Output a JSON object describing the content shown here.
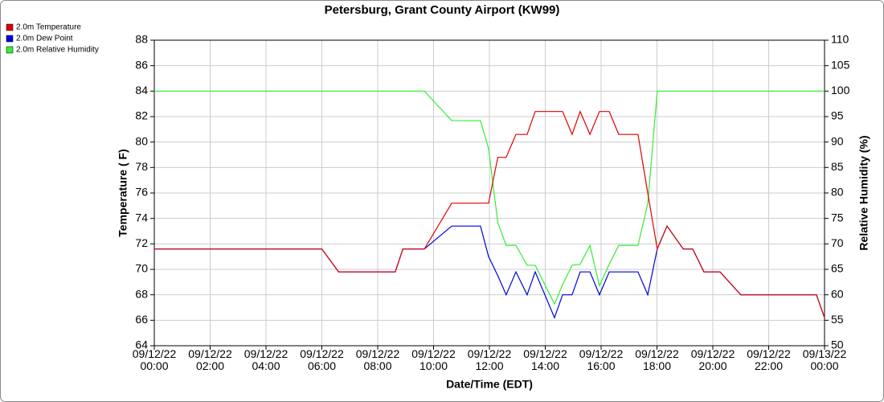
{
  "chart_data": {
    "type": "line",
    "title": "Petersburg, Grant County Airport (KW99)",
    "x_label": "Date/Time (EDT)",
    "y_label": "Temperature ( F)",
    "y2_label": "Relative Humidity (%)",
    "x": [
      0,
      6.0,
      6.6,
      8.63,
      8.9,
      9.67,
      10.65,
      11.68,
      11.97,
      12.3,
      12.6,
      12.95,
      13.35,
      13.64,
      14.33,
      14.62,
      14.96,
      15.25,
      15.6,
      15.94,
      16.29,
      16.63,
      17.32,
      17.67,
      18.01,
      18.36,
      18.94,
      19.28,
      19.68,
      20.26,
      21.0,
      23.71,
      24
    ],
    "series": [
      {
        "name": "2.0m Temperature",
        "color": "#e00000",
        "values": [
          71.6,
          71.6,
          69.8,
          69.8,
          71.6,
          71.6,
          75.2,
          75.2,
          75.2,
          78.8,
          78.8,
          80.6,
          80.6,
          82.4,
          82.4,
          82.4,
          80.6,
          82.4,
          80.6,
          82.4,
          82.4,
          80.6,
          80.6,
          76.0,
          71.6,
          73.4,
          71.6,
          71.6,
          69.8,
          69.8,
          68.0,
          68.0,
          66.2
        ]
      },
      {
        "name": "2.0m Dew Point",
        "color": "#0000e0",
        "values": [
          71.6,
          71.6,
          69.8,
          69.8,
          71.6,
          71.6,
          73.4,
          73.4,
          71.0,
          69.5,
          68.0,
          69.8,
          68.0,
          69.8,
          66.2,
          68.0,
          68.0,
          69.8,
          69.8,
          68.0,
          69.8,
          69.8,
          69.8,
          68.0,
          71.6,
          73.4,
          71.6,
          71.6,
          69.8,
          69.8,
          68.0,
          68.0,
          66.2
        ]
      },
      {
        "name": "2.0m Relative Humidity",
        "color": "#33ee33",
        "axis": "y2",
        "values": [
          100,
          100,
          100,
          100,
          100,
          100,
          94.2,
          94.2,
          88.7,
          74.2,
          69.7,
          69.7,
          65.8,
          65.8,
          58.2,
          62.0,
          65.8,
          66.0,
          69.7,
          61.8,
          66.0,
          69.7,
          69.7,
          77.9,
          100,
          100,
          100,
          100,
          100,
          100,
          100,
          100,
          100
        ]
      }
    ],
    "xlim": [
      0,
      24
    ],
    "xticks": [
      {
        "value": 0,
        "label": "09/12/22\n00:00"
      },
      {
        "value": 2,
        "label": "09/12/22\n02:00"
      },
      {
        "value": 4,
        "label": "09/12/22\n04:00"
      },
      {
        "value": 6,
        "label": "09/12/22\n06:00"
      },
      {
        "value": 8,
        "label": "09/12/22\n08:00"
      },
      {
        "value": 10,
        "label": "09/12/22\n10:00"
      },
      {
        "value": 12,
        "label": "09/12/22\n12:00"
      },
      {
        "value": 14,
        "label": "09/12/22\n14:00"
      },
      {
        "value": 16,
        "label": "09/12/22\n16:00"
      },
      {
        "value": 18,
        "label": "09/12/22\n18:00"
      },
      {
        "value": 20,
        "label": "09/12/22\n20:00"
      },
      {
        "value": 22,
        "label": "09/12/22\n22:00"
      },
      {
        "value": 24,
        "label": "09/13/22\n00:00"
      }
    ],
    "ylim": [
      64,
      88
    ],
    "yticks": [
      64,
      66,
      68,
      70,
      72,
      74,
      76,
      78,
      80,
      82,
      84,
      86,
      88
    ],
    "y2lim": [
      50,
      110
    ],
    "y2ticks": [
      50,
      55,
      60,
      65,
      70,
      75,
      80,
      85,
      90,
      95,
      100,
      105,
      110
    ],
    "grid": true,
    "legend": "top-left"
  }
}
